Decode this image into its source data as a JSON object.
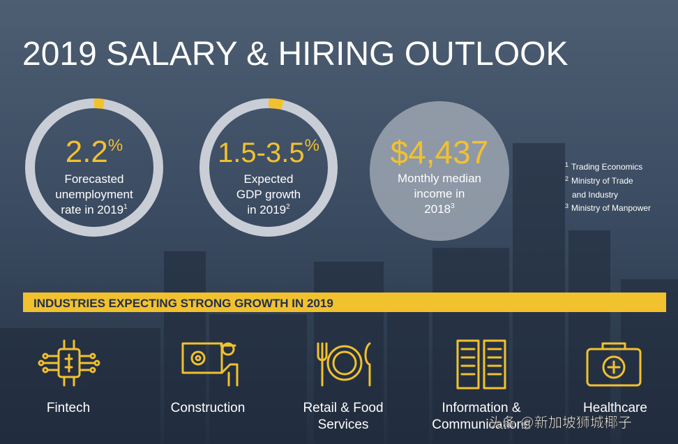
{
  "header": {
    "title": "2019 SALARY & HIRING OUTLOOK"
  },
  "stats": [
    {
      "value": "2.2",
      "unit": "%",
      "label": [
        "Forecasted",
        "unemployment",
        "rate in 2019"
      ],
      "note": "1"
    },
    {
      "value": "1.5-3.5",
      "unit": "%",
      "label": [
        "Expected",
        "GDP growth",
        "in 2019"
      ],
      "note": "2"
    },
    {
      "value": "$4,437",
      "label": [
        "Monthly median",
        "income in",
        "2018"
      ],
      "note": "3"
    }
  ],
  "footnotes": [
    {
      "mark": "1",
      "lines": [
        "Trading Economics"
      ]
    },
    {
      "mark": "2",
      "lines": [
        "Ministry of Trade",
        "and Industry"
      ]
    },
    {
      "mark": "3",
      "lines": [
        "Ministry of Manpower"
      ]
    }
  ],
  "banner": "INDUSTRIES EXPECTING STRONG GROWTH IN 2019",
  "industries": [
    {
      "lines": [
        "Fintech"
      ]
    },
    {
      "lines": [
        "Construction"
      ]
    },
    {
      "lines": [
        "Retail & Food",
        "Services"
      ]
    },
    {
      "lines": [
        "Information &",
        "Communications"
      ]
    },
    {
      "lines": [
        "Healthcare"
      ]
    }
  ],
  "watermark": "头条 @新加坡狮城椰子"
}
